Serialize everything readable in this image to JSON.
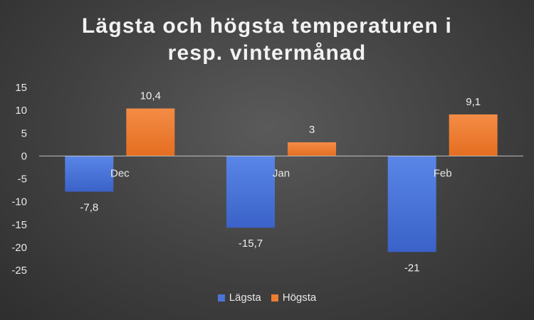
{
  "chart_data": {
    "type": "bar",
    "title_lines": [
      "Lägsta och högsta temperaturen i",
      "resp. vintermånad"
    ],
    "categories": [
      "Dec",
      "Jan",
      "Feb"
    ],
    "series": [
      {
        "name": "Lägsta",
        "values": [
          -7.8,
          -15.7,
          -21
        ],
        "labels": [
          "-7,8",
          "-15,7",
          "-21"
        ],
        "color": "#4a72d8"
      },
      {
        "name": "Högsta",
        "values": [
          10.4,
          3,
          9.1
        ],
        "labels": [
          "10,4",
          "3",
          "9,1"
        ],
        "color": "#ed7d31"
      }
    ],
    "ylim": [
      -25,
      15
    ],
    "yticks": [
      15,
      10,
      5,
      0,
      -5,
      -10,
      -15,
      -20,
      -25
    ],
    "grid": false,
    "legend": "bottom"
  }
}
